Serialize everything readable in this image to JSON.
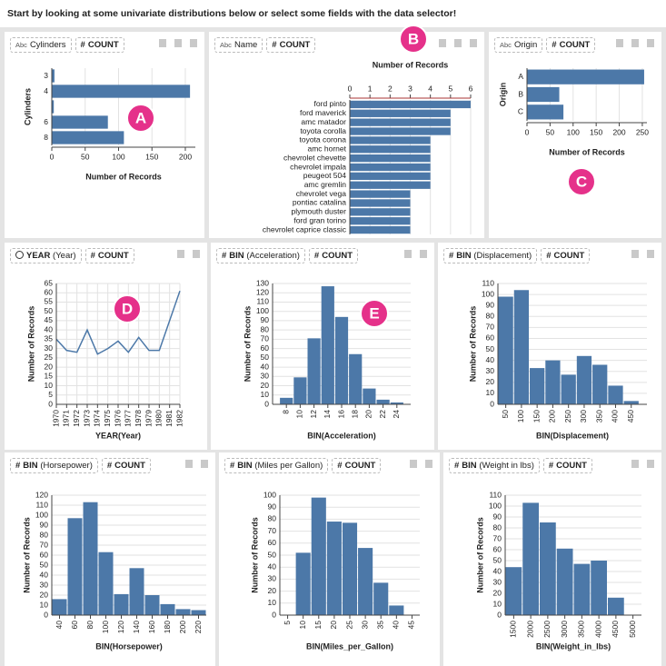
{
  "instruction": "Start by looking at some univariate distributions below or select some fields with the data selector!",
  "chart_data": [
    {
      "type": "bar",
      "horizontal": true,
      "badge": "A",
      "field": {
        "type": "Abc",
        "name": "Cylinders"
      },
      "measure": {
        "type": "#",
        "name": "COUNT"
      },
      "categories": [
        "3",
        "4",
        null,
        "6",
        "8"
      ],
      "values": [
        4,
        207,
        3,
        84,
        108
      ],
      "xlim": [
        0,
        215
      ],
      "xticks": [
        0,
        50,
        100,
        150,
        200
      ],
      "x_label": "Number of Records",
      "y_label": "Cylinders",
      "x_axis_position": "bottom",
      "color": "#4c78a8",
      "grid": true
    },
    {
      "type": "bar",
      "horizontal": true,
      "badge": "B",
      "field": {
        "type": "Abc",
        "name": "Name"
      },
      "measure": {
        "type": "#",
        "name": "COUNT"
      },
      "categories": [
        "ford pinto",
        "ford maverick",
        "amc matador",
        "toyota corolla",
        "toyota corona",
        "amc hornet",
        "chevrolet chevette",
        "chevrolet impala",
        "peugeot 504",
        "amc gremlin",
        "chevrolet vega",
        "pontiac catalina",
        "plymouth duster",
        "ford gran torino",
        "chevrolet caprice classic"
      ],
      "values": [
        6,
        5,
        5,
        5,
        4,
        4,
        4,
        4,
        4,
        4,
        3,
        3,
        3,
        3,
        3
      ],
      "xlim": [
        0,
        6
      ],
      "xticks": [
        0,
        1,
        2,
        3,
        4,
        5,
        6
      ],
      "x_label": "Number of Records",
      "x_axis_position": "top",
      "color": "#4c78a8",
      "grid": true
    },
    {
      "type": "bar",
      "horizontal": true,
      "badge": "C",
      "field": {
        "type": "Abc",
        "name": "Origin"
      },
      "measure": {
        "type": "#",
        "name": "COUNT"
      },
      "categories": [
        "A",
        "B",
        "C"
      ],
      "values": [
        254,
        70,
        79
      ],
      "xlim": [
        0,
        260
      ],
      "xticks": [
        0,
        50,
        100,
        150,
        200,
        250
      ],
      "x_label": "Number of Records",
      "y_label": "Origin",
      "x_axis_position": "bottom",
      "color": "#4c78a8",
      "grid": true
    },
    {
      "type": "line",
      "badge": "D",
      "field": {
        "type": "clock",
        "fn": "YEAR",
        "name": "(Year)"
      },
      "measure": {
        "type": "#",
        "name": "COUNT"
      },
      "x": [
        1970,
        1971,
        1972,
        1973,
        1974,
        1975,
        1976,
        1977,
        1978,
        1979,
        1980,
        1982
      ],
      "values": [
        35,
        29,
        28,
        40,
        27,
        30,
        34,
        28,
        36,
        29,
        29,
        61
      ],
      "xlim": [
        1970,
        1982
      ],
      "xticks": [
        1970,
        1971,
        1972,
        1973,
        1974,
        1975,
        1976,
        1977,
        1978,
        1979,
        1980,
        1981,
        1982
      ],
      "ylim": [
        0,
        65
      ],
      "yticks": [
        0,
        5,
        10,
        15,
        20,
        25,
        30,
        35,
        40,
        45,
        50,
        55,
        60,
        65
      ],
      "x_label": "YEAR(Year)",
      "y_label": "Number of Records",
      "color": "#4c78a8",
      "grid": true
    },
    {
      "type": "histogram",
      "badge": "E",
      "field": {
        "type": "#",
        "fn": "BIN",
        "name": "(Acceleration)"
      },
      "measure": {
        "type": "#",
        "name": "COUNT"
      },
      "bins": [
        7,
        9,
        11,
        13,
        15,
        17,
        19,
        21,
        23,
        25
      ],
      "values": [
        7,
        29,
        71,
        127,
        94,
        54,
        17,
        5,
        2
      ],
      "xlim": [
        6,
        26
      ],
      "xticks": [
        8,
        10,
        12,
        14,
        16,
        18,
        20,
        22,
        24
      ],
      "ylim": [
        0,
        130
      ],
      "yticks": [
        0,
        10,
        20,
        30,
        40,
        50,
        60,
        70,
        80,
        90,
        100,
        110,
        120,
        130
      ],
      "x_label": "BIN(Acceleration)",
      "y_label": "Number of Records",
      "color": "#4c78a8",
      "grid": true
    },
    {
      "type": "histogram",
      "field": {
        "type": "#",
        "fn": "BIN",
        "name": "(Displacement)"
      },
      "measure": {
        "type": "#",
        "name": "COUNT"
      },
      "bins": [
        25,
        75,
        125,
        175,
        225,
        275,
        325,
        375,
        425,
        475
      ],
      "values": [
        98,
        104,
        33,
        40,
        27,
        44,
        36,
        17,
        3
      ],
      "xlim": [
        25,
        500
      ],
      "xticks": [
        50,
        100,
        150,
        200,
        250,
        300,
        350,
        400,
        450
      ],
      "ylim": [
        0,
        110
      ],
      "yticks": [
        0,
        10,
        20,
        30,
        40,
        50,
        60,
        70,
        80,
        90,
        100,
        110
      ],
      "x_label": "BIN(Displacement)",
      "y_label": "Number of Records",
      "color": "#4c78a8",
      "grid": true
    },
    {
      "type": "histogram",
      "field": {
        "type": "#",
        "fn": "BIN",
        "name": "(Horsepower)"
      },
      "measure": {
        "type": "#",
        "name": "COUNT"
      },
      "bins": [
        30,
        50,
        70,
        90,
        110,
        130,
        150,
        170,
        190,
        210,
        230
      ],
      "values": [
        16,
        97,
        113,
        63,
        21,
        47,
        20,
        11,
        6,
        5
      ],
      "xlim": [
        30,
        230
      ],
      "xticks": [
        40,
        60,
        80,
        100,
        120,
        140,
        160,
        180,
        200,
        220
      ],
      "ylim": [
        0,
        120
      ],
      "yticks": [
        0,
        10,
        20,
        30,
        40,
        50,
        60,
        70,
        80,
        90,
        100,
        110,
        120
      ],
      "x_label": "BIN(Horsepower)",
      "y_label": "Number of Records",
      "color": "#4c78a8",
      "grid": true
    },
    {
      "type": "histogram",
      "field": {
        "type": "#",
        "fn": "BIN",
        "name": "(Miles per Gallon)"
      },
      "measure": {
        "type": "#",
        "name": "COUNT"
      },
      "bins": [
        7.5,
        12.5,
        17.5,
        22.5,
        27.5,
        32.5,
        37.5,
        42.5
      ],
      "values": [
        52,
        98,
        78,
        77,
        56,
        27,
        8
      ],
      "xlim": [
        2.5,
        47.5
      ],
      "xticks": [
        5,
        10,
        15,
        20,
        25,
        30,
        35,
        40,
        45
      ],
      "ylim": [
        0,
        100
      ],
      "yticks": [
        0,
        10,
        20,
        30,
        40,
        50,
        60,
        70,
        80,
        90,
        100
      ],
      "x_label": "BIN(Miles_per_Gallon)",
      "y_label": "Number of Records",
      "color": "#4c78a8",
      "grid": true
    },
    {
      "type": "histogram",
      "field": {
        "type": "#",
        "fn": "BIN",
        "name": "(Weight in lbs)"
      },
      "measure": {
        "type": "#",
        "name": "COUNT"
      },
      "bins": [
        1250,
        1750,
        2250,
        2750,
        3250,
        3750,
        4250,
        4750
      ],
      "values": [
        44,
        103,
        85,
        61,
        47,
        50,
        16
      ],
      "xlim": [
        1250,
        5250
      ],
      "xticks": [
        1500,
        2000,
        2500,
        3000,
        3500,
        4000,
        4500,
        5000
      ],
      "ylim": [
        0,
        110
      ],
      "yticks": [
        0,
        10,
        20,
        30,
        40,
        50,
        60,
        70,
        80,
        90,
        100,
        110
      ],
      "x_label": "BIN(Weight_in_lbs)",
      "y_label": "Number of Records",
      "color": "#4c78a8",
      "grid": true
    }
  ]
}
